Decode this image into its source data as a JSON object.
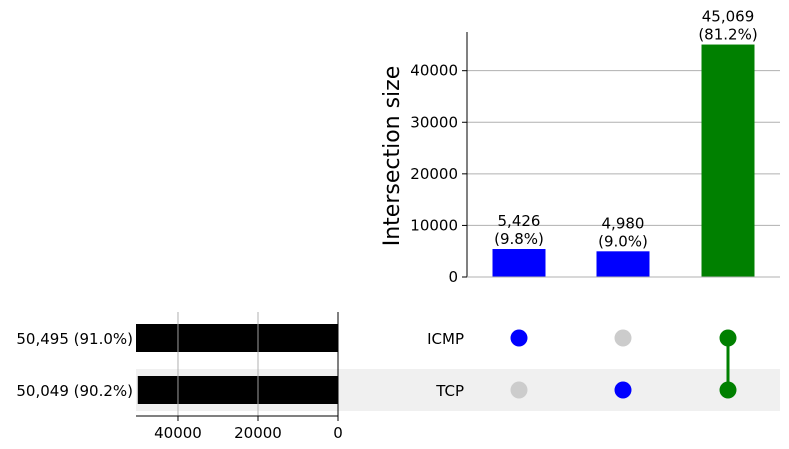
{
  "chart_data": {
    "type": "bar",
    "subtype": "upset",
    "ylabel": "Intersection size",
    "ylim": [
      0,
      47500
    ],
    "yticks": [
      0,
      10000,
      20000,
      30000,
      40000
    ],
    "grid": true,
    "sets": [
      {
        "name": "ICMP",
        "size": 50495,
        "label": "50,495 (91.0%)"
      },
      {
        "name": "TCP",
        "size": 50049,
        "label": "50,049 (90.2%)"
      }
    ],
    "set_size_ticks": [
      40000,
      20000,
      0
    ],
    "set_size_xlim": [
      50495,
      0
    ],
    "intersections": [
      {
        "members": [
          "ICMP"
        ],
        "value": 5426,
        "label": "5,426",
        "pct": "(9.8%)",
        "color": "#0000ff"
      },
      {
        "members": [
          "TCP"
        ],
        "value": 4980,
        "label": "4,980",
        "pct": "(9.0%)",
        "color": "#0000ff"
      },
      {
        "members": [
          "ICMP",
          "TCP"
        ],
        "value": 45069,
        "label": "45,069",
        "pct": "(81.2%)",
        "color": "#008000"
      }
    ],
    "inactive_dot_color": "#cccccc",
    "set_bar_color": "#000000",
    "shading_color": "#f0f0f0"
  }
}
